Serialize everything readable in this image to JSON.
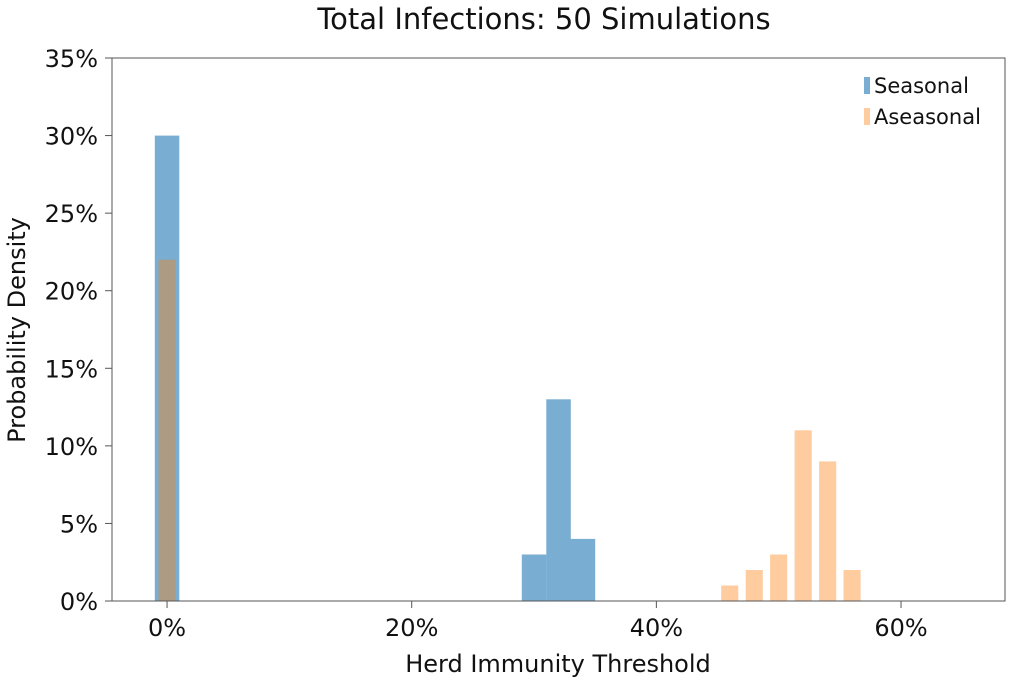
{
  "chart_data": {
    "type": "bar",
    "title": "Total Infections: 50 Simulations",
    "xlabel": "Herd Immunity Threshold",
    "ylabel": "Probability Density",
    "xlim": [
      -0.045,
      0.685
    ],
    "ylim": [
      0,
      0.35
    ],
    "x_ticks": [
      0,
      0.2,
      0.4,
      0.6
    ],
    "x_tick_labels": [
      "0%",
      "20%",
      "40%",
      "60%"
    ],
    "y_ticks": [
      0,
      0.05,
      0.1,
      0.15,
      0.2,
      0.25,
      0.3,
      0.35
    ],
    "y_tick_labels": [
      "0%",
      "5%",
      "10%",
      "15%",
      "20%",
      "25%",
      "30%",
      "35%"
    ],
    "grid": false,
    "legend_position": "top-right",
    "series": [
      {
        "name": "Seasonal",
        "color": "#1f77b4",
        "bin_width": 0.02,
        "bars": [
          {
            "x": 0.0,
            "y": 0.3
          },
          {
            "x": 0.3,
            "y": 0.03
          },
          {
            "x": 0.32,
            "y": 0.13
          },
          {
            "x": 0.34,
            "y": 0.04
          }
        ]
      },
      {
        "name": "Aseasonal",
        "color": "#ff7f0e",
        "bin_width": 0.014,
        "bars": [
          {
            "x": 0.0,
            "y": 0.22
          },
          {
            "x": 0.46,
            "y": 0.01
          },
          {
            "x": 0.48,
            "y": 0.02
          },
          {
            "x": 0.5,
            "y": 0.03
          },
          {
            "x": 0.52,
            "y": 0.11
          },
          {
            "x": 0.54,
            "y": 0.09
          },
          {
            "x": 0.56,
            "y": 0.02
          }
        ]
      }
    ]
  }
}
